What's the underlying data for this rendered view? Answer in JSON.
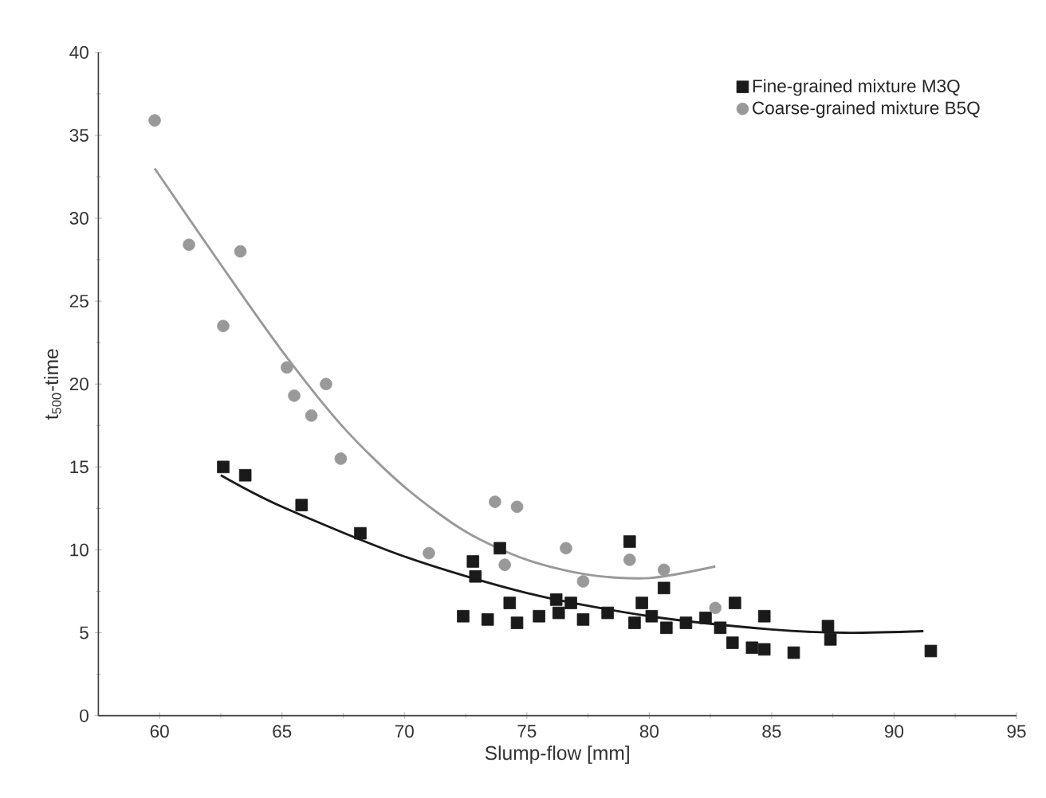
{
  "chart_data": {
    "type": "scatter",
    "xlabel": "Slump-flow [mm]",
    "ylabel": "t$_{500}$-time",
    "xlim": [
      57.5,
      95
    ],
    "ylim": [
      0,
      40
    ],
    "xticks": [
      60,
      65,
      70,
      75,
      80,
      85,
      90,
      95
    ],
    "yticks": [
      0,
      5,
      10,
      15,
      20,
      25,
      30,
      35,
      40
    ],
    "grid": false,
    "legend": "top right",
    "series": [
      {
        "name": "Fine-grained mixture M3Q",
        "marker": "square",
        "color": "#1a1a1a",
        "x": [
          62.6,
          63.5,
          65.8,
          68.2,
          79.2,
          73.9,
          72.8,
          72.9,
          80.6,
          72.4,
          73.4,
          74.3,
          74.6,
          75.5,
          76.2,
          76.3,
          76.8,
          77.3,
          78.3,
          79.7,
          79.4,
          80.1,
          80.7,
          81.5,
          82.3,
          82.9,
          83.5,
          83.4,
          84.2,
          84.7,
          84.7,
          85.9,
          87.3,
          87.4,
          91.5
        ],
        "values": [
          15.0,
          14.5,
          12.7,
          11.0,
          10.5,
          10.1,
          9.3,
          8.4,
          7.7,
          6.0,
          5.8,
          6.8,
          5.6,
          6.0,
          7.0,
          6.2,
          6.8,
          5.8,
          6.2,
          6.8,
          5.6,
          6.0,
          5.3,
          5.6,
          5.9,
          5.3,
          6.8,
          4.4,
          4.1,
          4.0,
          6.0,
          3.8,
          5.4,
          4.6,
          3.9
        ]
      },
      {
        "name": "Coarse-grained mixture B5Q",
        "marker": "circle",
        "color": "#999999",
        "x": [
          59.8,
          61.2,
          63.3,
          62.6,
          65.2,
          66.8,
          65.5,
          66.2,
          67.4,
          71.0,
          73.7,
          74.6,
          74.1,
          76.6,
          77.3,
          79.2,
          80.6,
          82.7
        ],
        "values": [
          35.9,
          28.4,
          28.0,
          23.5,
          21.0,
          20.0,
          19.3,
          18.1,
          15.5,
          9.8,
          12.9,
          12.6,
          9.1,
          10.1,
          8.1,
          9.4,
          8.8,
          6.5
        ]
      },
      {
        "type": "line",
        "marker": "none",
        "color": "#1a1a1a",
        "x": [
          62.5,
          65,
          70,
          75,
          80,
          85,
          88,
          91.2
        ],
        "values": [
          14.5,
          12.6,
          9.6,
          7.4,
          6.0,
          5.2,
          5.0,
          5.1
        ]
      },
      {
        "type": "line",
        "marker": "none",
        "color": "#999999",
        "x": [
          59.8,
          62.5,
          65,
          67.5,
          70,
          72.5,
          75,
          77.5,
          80,
          82.7
        ],
        "values": [
          33.0,
          27.2,
          22.0,
          17.4,
          13.8,
          11.1,
          9.4,
          8.5,
          8.3,
          9.0
        ]
      }
    ]
  }
}
